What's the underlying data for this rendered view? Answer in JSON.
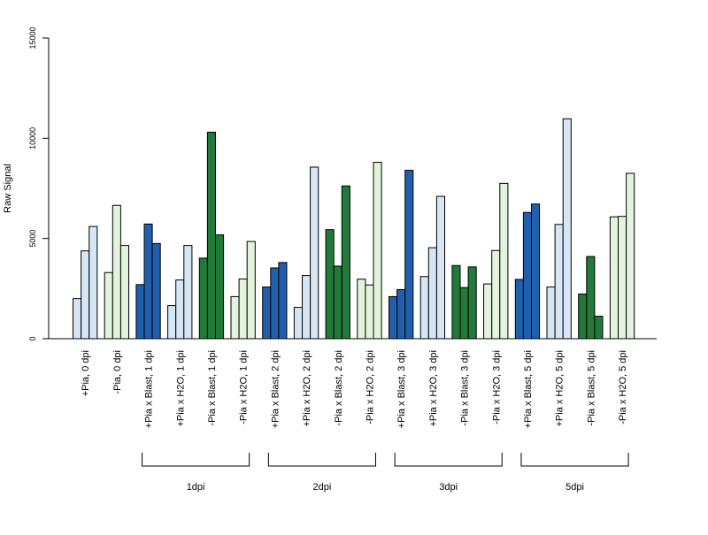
{
  "chart_data": {
    "type": "bar",
    "ylabel": "Raw Signal",
    "ylim": [
      0,
      15000
    ],
    "yticks": [
      0,
      5000,
      10000,
      15000
    ],
    "categories": [
      "+Pia, 0 dpi",
      "-Pia, 0 dpi",
      "+Pia x Blast, 1 dpi",
      "+Pia x H2O, 1 dpi",
      "-Pia x Blast, 1 dpi",
      "-Pia x H2O, 1 dpi",
      "+Pia x Blast, 2 dpi",
      "+Pia x H2O, 2 dpi",
      "-Pia x Blast, 2 dpi",
      "-Pia x H2O, 2 dpi",
      "+Pia x Blast, 3 dpi",
      "+Pia x H2O, 3 dpi",
      "-Pia x Blast, 3 dpi",
      "-Pia x H2O, 3 dpi",
      "+Pia x Blast, 5 dpi",
      "+Pia x H2O, 5 dpi",
      "-Pia x Blast, 5 dpi",
      "-Pia x H2O, 5 dpi"
    ],
    "category_colors": [
      "#d6e6f5",
      "#e3f4dc",
      "#1f5fae",
      "#d6e6f5",
      "#217a38",
      "#e3f4dc",
      "#1f5fae",
      "#d6e6f5",
      "#217a38",
      "#e3f4dc",
      "#1f5fae",
      "#d6e6f5",
      "#217a38",
      "#e3f4dc",
      "#1f5fae",
      "#d6e6f5",
      "#217a38",
      "#e3f4dc"
    ],
    "values": [
      [
        2000,
        4380,
        5600
      ],
      [
        3300,
        6650,
        4650
      ],
      [
        2700,
        5720,
        4750
      ],
      [
        1650,
        2930,
        4650
      ],
      [
        4020,
        10300,
        5180
      ],
      [
        2100,
        2980,
        4850
      ],
      [
        2580,
        3530,
        3800
      ],
      [
        1560,
        3150,
        8560
      ],
      [
        5440,
        3620,
        7620
      ],
      [
        2970,
        2680,
        8800
      ],
      [
        2100,
        2450,
        8400
      ],
      [
        3100,
        4540,
        7100
      ],
      [
        3650,
        2550,
        3580
      ],
      [
        2730,
        4400,
        7750
      ],
      [
        2960,
        6300,
        6720
      ],
      [
        2580,
        5700,
        10970
      ],
      [
        2230,
        4100,
        1120
      ],
      [
        6080,
        6100,
        8250
      ]
    ],
    "groups": [
      {
        "label": "1dpi",
        "from": 2,
        "to": 5
      },
      {
        "label": "2dpi",
        "from": 6,
        "to": 9
      },
      {
        "label": "3dpi",
        "from": 10,
        "to": 13
      },
      {
        "label": "5dpi",
        "from": 14,
        "to": 17
      }
    ],
    "grid": false,
    "legend": "none"
  }
}
